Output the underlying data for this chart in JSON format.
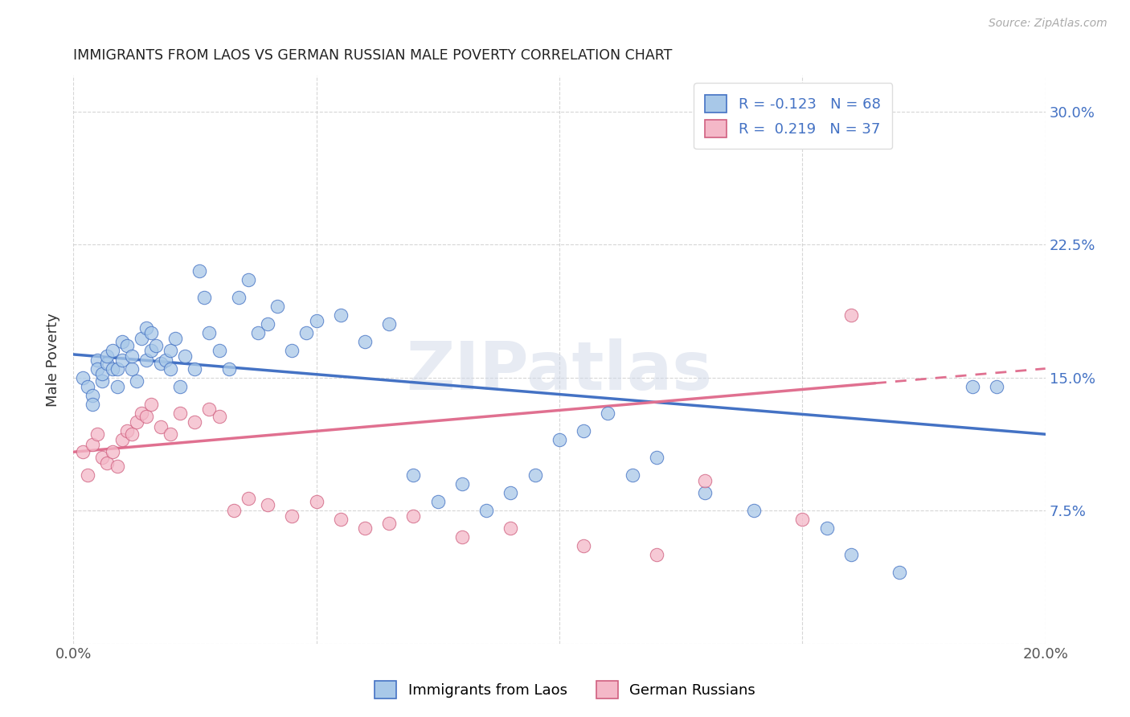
{
  "title": "IMMIGRANTS FROM LAOS VS GERMAN RUSSIAN MALE POVERTY CORRELATION CHART",
  "source": "Source: ZipAtlas.com",
  "ylabel": "Male Poverty",
  "xlim": [
    0.0,
    0.2
  ],
  "ylim": [
    0.0,
    0.32
  ],
  "color_blue": "#a8c8e8",
  "color_pink": "#f4b8c8",
  "color_blue_line": "#4472c4",
  "color_pink_line": "#e07090",
  "color_blue_dark": "#4472c4",
  "color_pink_dark": "#d06080",
  "watermark": "ZIPatlas",
  "laos_x": [
    0.002,
    0.003,
    0.004,
    0.004,
    0.005,
    0.005,
    0.006,
    0.006,
    0.007,
    0.007,
    0.008,
    0.008,
    0.009,
    0.009,
    0.01,
    0.01,
    0.011,
    0.012,
    0.012,
    0.013,
    0.014,
    0.015,
    0.015,
    0.016,
    0.016,
    0.017,
    0.018,
    0.019,
    0.02,
    0.02,
    0.021,
    0.022,
    0.023,
    0.025,
    0.026,
    0.027,
    0.028,
    0.03,
    0.032,
    0.034,
    0.036,
    0.038,
    0.04,
    0.042,
    0.045,
    0.048,
    0.05,
    0.055,
    0.06,
    0.065,
    0.07,
    0.075,
    0.08,
    0.085,
    0.09,
    0.095,
    0.1,
    0.105,
    0.11,
    0.115,
    0.12,
    0.13,
    0.14,
    0.155,
    0.16,
    0.17,
    0.185,
    0.19
  ],
  "laos_y": [
    0.15,
    0.145,
    0.14,
    0.135,
    0.16,
    0.155,
    0.148,
    0.152,
    0.158,
    0.162,
    0.155,
    0.165,
    0.145,
    0.155,
    0.17,
    0.16,
    0.168,
    0.155,
    0.162,
    0.148,
    0.172,
    0.16,
    0.178,
    0.165,
    0.175,
    0.168,
    0.158,
    0.16,
    0.155,
    0.165,
    0.172,
    0.145,
    0.162,
    0.155,
    0.21,
    0.195,
    0.175,
    0.165,
    0.155,
    0.195,
    0.205,
    0.175,
    0.18,
    0.19,
    0.165,
    0.175,
    0.182,
    0.185,
    0.17,
    0.18,
    0.095,
    0.08,
    0.09,
    0.075,
    0.085,
    0.095,
    0.115,
    0.12,
    0.13,
    0.095,
    0.105,
    0.085,
    0.075,
    0.065,
    0.05,
    0.04,
    0.145,
    0.145
  ],
  "german_x": [
    0.002,
    0.003,
    0.004,
    0.005,
    0.006,
    0.007,
    0.008,
    0.009,
    0.01,
    0.011,
    0.012,
    0.013,
    0.014,
    0.015,
    0.016,
    0.018,
    0.02,
    0.022,
    0.025,
    0.028,
    0.03,
    0.033,
    0.036,
    0.04,
    0.045,
    0.05,
    0.055,
    0.06,
    0.065,
    0.07,
    0.08,
    0.09,
    0.105,
    0.12,
    0.13,
    0.15,
    0.16
  ],
  "german_y": [
    0.108,
    0.095,
    0.112,
    0.118,
    0.105,
    0.102,
    0.108,
    0.1,
    0.115,
    0.12,
    0.118,
    0.125,
    0.13,
    0.128,
    0.135,
    0.122,
    0.118,
    0.13,
    0.125,
    0.132,
    0.128,
    0.075,
    0.082,
    0.078,
    0.072,
    0.08,
    0.07,
    0.065,
    0.068,
    0.072,
    0.06,
    0.065,
    0.055,
    0.05,
    0.092,
    0.07,
    0.185
  ],
  "blue_line_start_y": 0.163,
  "blue_line_end_y": 0.118,
  "pink_line_start_y": 0.108,
  "pink_line_end_y": 0.155
}
